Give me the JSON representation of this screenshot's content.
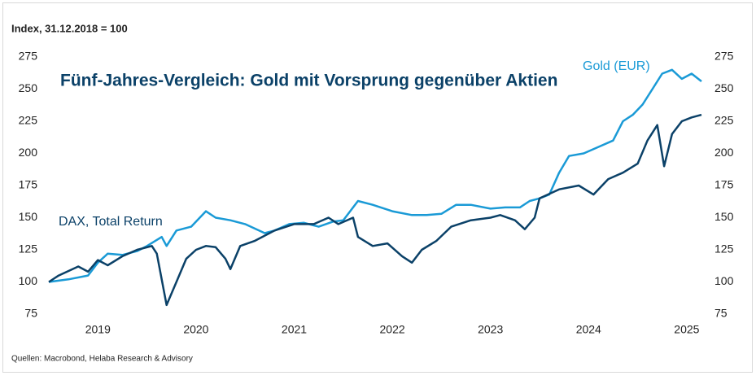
{
  "chart_data": {
    "type": "line",
    "subtitle": "Index, 31.12.2018 = 100",
    "title": "Fünf-Jahres-Vergleich: Gold mit Vorsprung gegenüber Aktien",
    "source": "Quellen: Macrobond, Helaba Research & Advisory",
    "xlim": [
      2019,
      2025.7
    ],
    "xticks": [
      {
        "value": 2019.5,
        "label": "2019"
      },
      {
        "value": 2020.5,
        "label": "2020"
      },
      {
        "value": 2021.5,
        "label": "2021"
      },
      {
        "value": 2022.5,
        "label": "2022"
      },
      {
        "value": 2023.5,
        "label": "2023"
      },
      {
        "value": 2024.5,
        "label": "2024"
      },
      {
        "value": 2025.5,
        "label": "2025"
      }
    ],
    "ylim": [
      75,
      275
    ],
    "yticks": [
      75,
      100,
      125,
      150,
      175,
      200,
      225,
      250,
      275
    ],
    "grid": false,
    "series": [
      {
        "name": "Gold (EUR)",
        "color": "#1a9ad6",
        "x": [
          2019.0,
          2019.2,
          2019.4,
          2019.5,
          2019.6,
          2019.75,
          2019.9,
          2020.0,
          2020.15,
          2020.2,
          2020.3,
          2020.45,
          2020.6,
          2020.7,
          2020.85,
          2021.0,
          2021.2,
          2021.3,
          2021.45,
          2021.6,
          2021.75,
          2021.9,
          2022.0,
          2022.15,
          2022.3,
          2022.5,
          2022.7,
          2022.85,
          2023.0,
          2023.15,
          2023.3,
          2023.5,
          2023.65,
          2023.8,
          2023.9,
          2024.0,
          2024.1,
          2024.2,
          2024.3,
          2024.45,
          2024.6,
          2024.75,
          2024.85,
          2024.95,
          2025.05,
          2025.15,
          2025.25,
          2025.35,
          2025.45,
          2025.55,
          2025.65
        ],
        "values": [
          100,
          102,
          105,
          115,
          122,
          121,
          124,
          128,
          135,
          128,
          140,
          143,
          155,
          150,
          148,
          145,
          138,
          140,
          145,
          146,
          143,
          147,
          148,
          163,
          160,
          155,
          152,
          152,
          153,
          160,
          160,
          157,
          158,
          158,
          163,
          165,
          168,
          185,
          198,
          200,
          205,
          210,
          225,
          230,
          238,
          250,
          262,
          265,
          258,
          262,
          256
        ]
      },
      {
        "name": "DAX, Total Return",
        "color": "#0b4168",
        "x": [
          2019.0,
          2019.1,
          2019.3,
          2019.4,
          2019.5,
          2019.6,
          2019.75,
          2019.9,
          2020.05,
          2020.1,
          2020.2,
          2020.3,
          2020.4,
          2020.5,
          2020.6,
          2020.7,
          2020.8,
          2020.85,
          2020.95,
          2021.1,
          2021.3,
          2021.5,
          2021.7,
          2021.85,
          2021.95,
          2022.1,
          2022.15,
          2022.3,
          2022.45,
          2022.6,
          2022.7,
          2022.8,
          2022.95,
          2023.1,
          2023.3,
          2023.5,
          2023.6,
          2023.75,
          2023.85,
          2023.95,
          2024.0,
          2024.2,
          2024.4,
          2024.55,
          2024.7,
          2024.85,
          2025.0,
          2025.1,
          2025.2,
          2025.27,
          2025.35,
          2025.45,
          2025.55,
          2025.65
        ],
        "values": [
          100,
          105,
          112,
          108,
          117,
          113,
          120,
          125,
          128,
          122,
          82,
          100,
          118,
          125,
          128,
          127,
          118,
          110,
          128,
          132,
          140,
          145,
          145,
          150,
          145,
          150,
          135,
          128,
          130,
          120,
          115,
          125,
          132,
          143,
          148,
          150,
          152,
          148,
          141,
          150,
          165,
          172,
          175,
          168,
          180,
          185,
          192,
          210,
          222,
          190,
          215,
          225,
          228,
          230
        ]
      }
    ]
  }
}
